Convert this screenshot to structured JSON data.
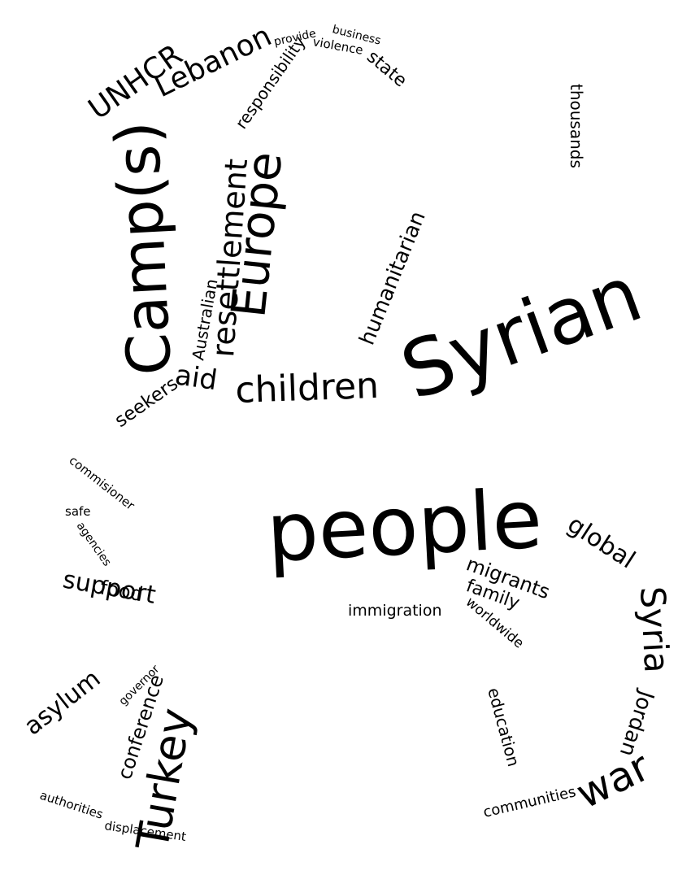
{
  "word_cloud": {
    "text_color": "#000000",
    "background_color": "#ffffff",
    "words": [
      "Syrian",
      "people",
      "Camp(s)",
      "Europe",
      "resettlement",
      "children",
      "Turkey",
      "Syria",
      "war",
      "global",
      "UNHCR",
      "Lebanon",
      "aid",
      "humanitarian",
      "asylum",
      "support",
      "food",
      "migrants",
      "family",
      "Jordan",
      "conference",
      "seekers",
      "Australian",
      "education",
      "responsibility",
      "state",
      "immigration",
      "thousands",
      "worldwide",
      "communities",
      "displacement",
      "authorities",
      "violence",
      "business",
      "provide",
      "safe",
      "agencies",
      "commisioner",
      "governor"
    ]
  }
}
